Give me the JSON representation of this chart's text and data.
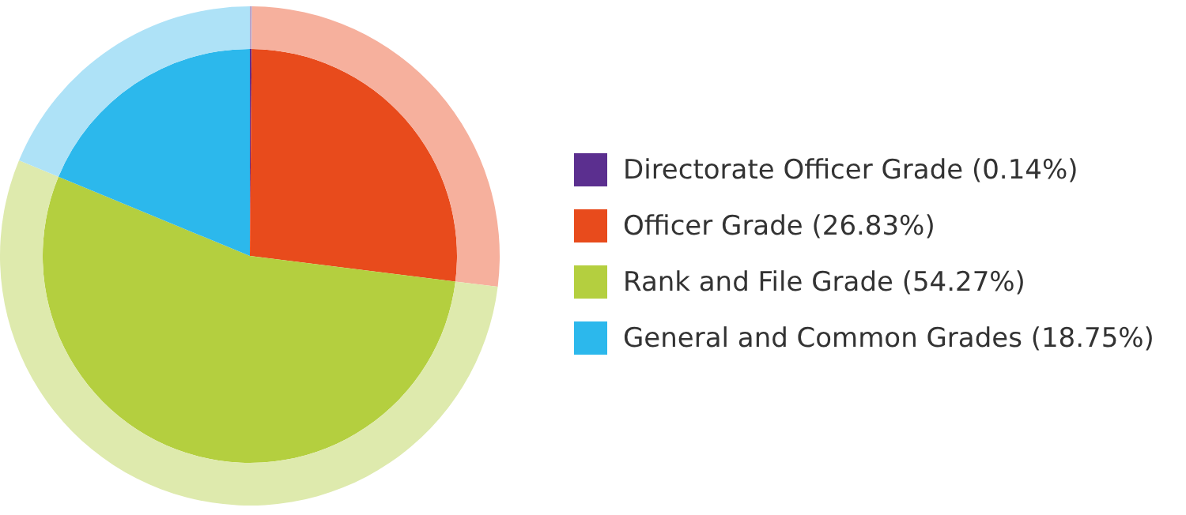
{
  "chart_data": {
    "type": "pie",
    "categories": [
      "Directorate Officer Grade (0.14%)",
      "Officer Grade (26.83%)",
      "Rank and File Grade (54.27%)",
      "General and Common Grades (18.75%)"
    ],
    "series": [
      {
        "values": [
          0.14,
          26.83,
          54.27,
          18.75
        ],
        "colors": [
          "#5b2f8f",
          "#e84b1c",
          "#b4cf3f",
          "#2cb8ec"
        ]
      },
      {
        "values": [
          0.14,
          26.83,
          54.27,
          18.75
        ],
        "colors": [
          "#b7a6cc",
          "#f6b09d",
          "#deeaad",
          "#aee2f7"
        ]
      }
    ],
    "legend": "right"
  }
}
